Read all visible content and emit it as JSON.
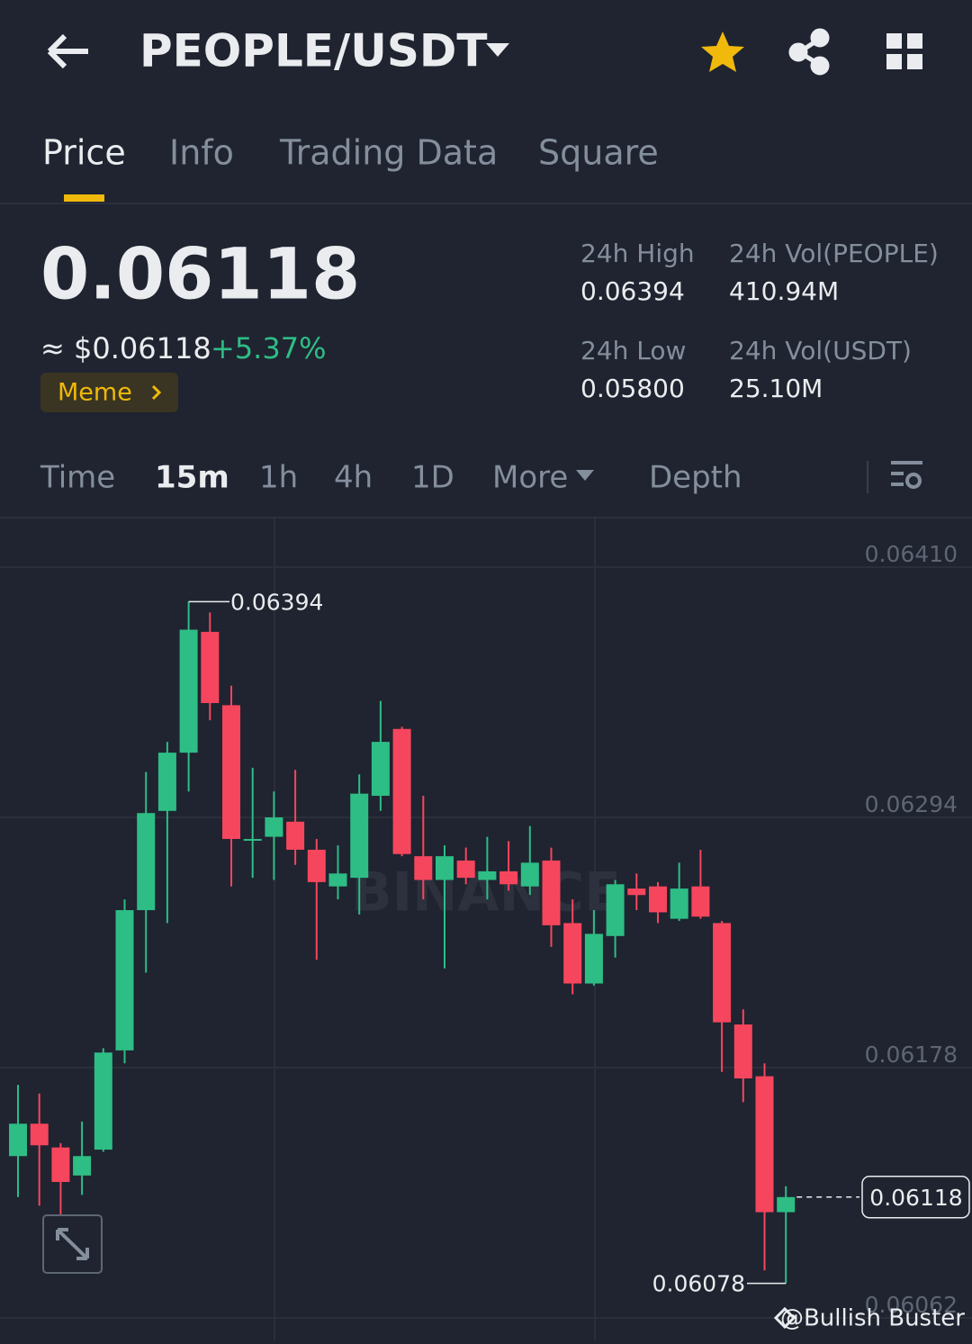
{
  "header": {
    "pair": "PEOPLE/USDT"
  },
  "tabs": [
    "Price",
    "Info",
    "Trading Data",
    "Square"
  ],
  "price": {
    "last": "0.06118",
    "usd": "≈ $0.06118",
    "change": "+5.37%",
    "tag": "Meme"
  },
  "stats": [
    {
      "label": "24h High",
      "value": "0.06394"
    },
    {
      "label": "24h Vol(PEOPLE)",
      "value": "410.94M"
    },
    {
      "label": "24h Low",
      "value": "0.05800"
    },
    {
      "label": "24h Vol(USDT)",
      "value": "25.10M"
    }
  ],
  "intervals": [
    "Time",
    "15m",
    "1h",
    "4h",
    "1D",
    "More",
    "Depth"
  ],
  "watermark": "@Bullish Buster",
  "logo": "BINANCE",
  "chart_data": {
    "type": "candlestick",
    "up_color": "#2ebd85",
    "down_color": "#f6465d",
    "open": [
      0.06137,
      0.06152,
      0.06141,
      0.06128,
      0.0614,
      0.06186,
      0.06251,
      0.06297,
      0.06324,
      0.0638,
      0.06346,
      0.06284,
      0.06285,
      0.06292,
      0.06279,
      0.06262,
      0.06266,
      0.06304,
      0.06335,
      0.06276,
      0.06265,
      0.06274,
      0.06265,
      0.06269,
      0.06262,
      0.06274,
      0.06245,
      0.06217,
      0.06239,
      0.06261,
      0.06262,
      0.06247,
      0.06262,
      0.06245,
      0.06198,
      0.06174,
      0.06111
    ],
    "high": [
      0.0617,
      0.06166,
      0.06143,
      0.06153,
      0.06187,
      0.06256,
      0.06315,
      0.06329,
      0.06394,
      0.06389,
      0.06355,
      0.06317,
      0.06306,
      0.06316,
      0.06284,
      0.06281,
      0.06314,
      0.06348,
      0.06336,
      0.06304,
      0.06281,
      0.0628,
      0.06285,
      0.06283,
      0.0629,
      0.0628,
      0.06256,
      0.06251,
      0.06265,
      0.06268,
      0.06264,
      0.06273,
      0.06279,
      0.06246,
      0.06205,
      0.0618,
      0.06123
    ],
    "low": [
      0.06118,
      0.06114,
      0.0611,
      0.06119,
      0.06139,
      0.0618,
      0.06222,
      0.06245,
      0.06306,
      0.06339,
      0.06262,
      0.06266,
      0.06265,
      0.06272,
      0.06228,
      0.06256,
      0.06249,
      0.06297,
      0.06276,
      0.06256,
      0.06224,
      0.06263,
      0.06256,
      0.0626,
      0.06258,
      0.06234,
      0.06212,
      0.06216,
      0.06229,
      0.06251,
      0.06245,
      0.06246,
      0.06247,
      0.06176,
      0.06162,
      0.06084,
      0.06078
    ],
    "close": [
      0.06152,
      0.06142,
      0.06125,
      0.06137,
      0.06185,
      0.06251,
      0.06296,
      0.06324,
      0.06381,
      0.06347,
      0.06284,
      0.06284,
      0.06294,
      0.06279,
      0.06264,
      0.06268,
      0.06305,
      0.06329,
      0.06277,
      0.06265,
      0.06276,
      0.06266,
      0.06269,
      0.06263,
      0.06273,
      0.06244,
      0.06217,
      0.0624,
      0.06263,
      0.06258,
      0.0625,
      0.06261,
      0.06248,
      0.06199,
      0.06173,
      0.06111,
      0.06118
    ],
    "ylim": [
      0.06062,
      0.0641
    ],
    "yticks": [
      {
        "value": 0.0641,
        "label": "0.06410"
      },
      0.06294,
      0.06178,
      0.06062
    ],
    "grid": true,
    "annotations": {
      "high": 0.06394,
      "low": 0.06078,
      "last": 0.06118
    }
  }
}
